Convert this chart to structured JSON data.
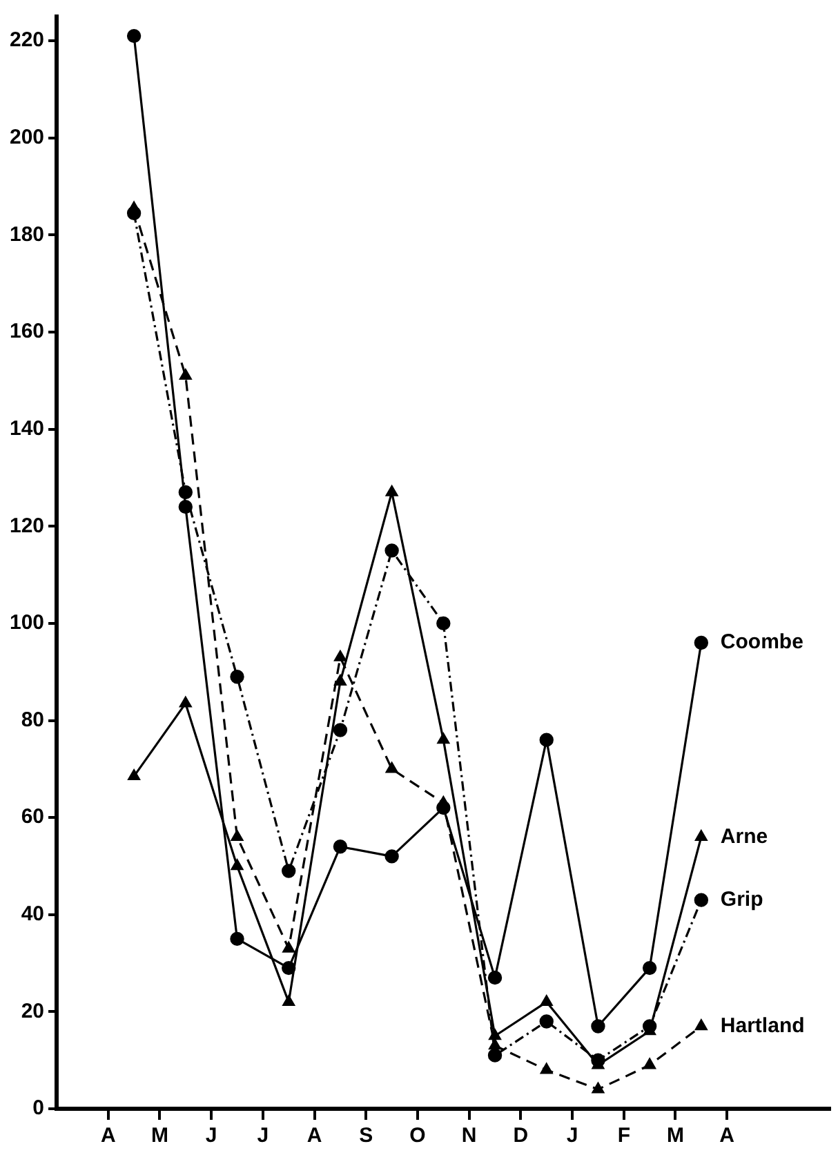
{
  "chart_data": {
    "type": "line",
    "categories": [
      null,
      null,
      "A",
      null,
      "M",
      null,
      "J",
      null,
      "J",
      null,
      "A",
      null,
      "S",
      null,
      "O",
      null,
      "N",
      null,
      "D",
      null,
      "J",
      null,
      "F",
      null,
      "M",
      null,
      "A",
      null,
      null,
      null,
      null
    ],
    "ylim": [
      0,
      225
    ],
    "yticks": [
      0,
      20,
      40,
      60,
      80,
      100,
      120,
      140,
      160,
      180,
      200,
      220
    ],
    "grid": false,
    "legend": false,
    "series": [
      {
        "name": "Coombe",
        "color": "#000000",
        "marker": "circle",
        "line_style": "solid",
        "values": [
          null,
          null,
          null,
          221,
          null,
          124,
          null,
          35,
          null,
          29,
          null,
          54,
          null,
          52,
          null,
          62,
          null,
          27,
          null,
          76,
          null,
          17,
          null,
          29,
          null,
          96,
          null,
          null,
          null,
          null,
          null
        ]
      },
      {
        "name": "Arne",
        "color": "#000000",
        "marker": "triangle",
        "line_style": "solid",
        "values": [
          null,
          null,
          null,
          68.5,
          null,
          83.5,
          null,
          50,
          null,
          22,
          null,
          88,
          null,
          127,
          null,
          76,
          null,
          15,
          null,
          22,
          null,
          9,
          null,
          16,
          null,
          56,
          null,
          null,
          null,
          null,
          null
        ]
      },
      {
        "name": "Grip",
        "color": "#000000",
        "marker": "circle",
        "line_style": "dashdot",
        "values": [
          null,
          null,
          null,
          184.5,
          null,
          127,
          null,
          89,
          null,
          49,
          null,
          78,
          null,
          115,
          null,
          100,
          null,
          11,
          null,
          18,
          null,
          10,
          null,
          17,
          null,
          43,
          null,
          null,
          null,
          null,
          null
        ]
      },
      {
        "name": "Hartland",
        "color": "#000000",
        "marker": "triangle",
        "line_style": "dashed",
        "values": [
          null,
          null,
          null,
          185.5,
          null,
          151,
          null,
          56,
          null,
          33,
          null,
          93,
          null,
          70,
          null,
          63,
          null,
          13,
          null,
          8,
          null,
          4,
          null,
          9,
          null,
          17,
          null,
          null,
          null,
          null,
          null
        ]
      }
    ]
  }
}
